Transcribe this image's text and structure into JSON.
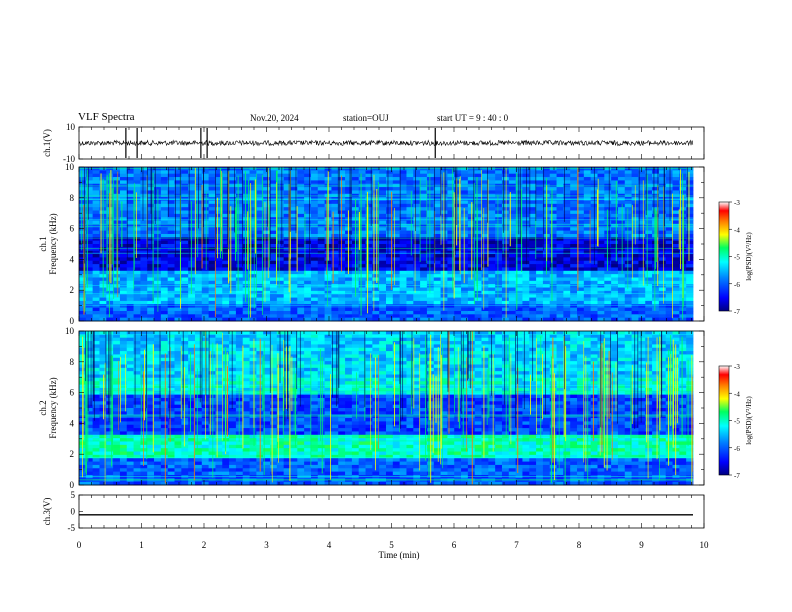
{
  "header": {
    "title": "VLF Spectra",
    "date": "Nov.20, 2024",
    "station": "station=OUJ",
    "start": "start  UT  =   9  : 40 : 0"
  },
  "colors": {
    "spectrogram_scale": [
      "#000080",
      "#0000ff",
      "#0080ff",
      "#00ffff",
      "#00ff80",
      "#ffff00",
      "#ff8000",
      "#ff0000",
      "#ffffff"
    ]
  },
  "chart_data": [
    {
      "type": "line",
      "panel": "waveform-ch1",
      "ylabel": "ch.1(V)",
      "ylim": [
        -10,
        10
      ],
      "yticks": [
        "10",
        "-10"
      ],
      "xlim": [
        0,
        10
      ],
      "baseline_value": 0,
      "description_values": {
        "spike_times_min": [
          0.75,
          0.93,
          1.95,
          2.05,
          5.7
        ]
      }
    },
    {
      "type": "heatmap",
      "panel": "spectrogram-ch1",
      "ylabel": "ch.1\nFrequency  (kHz)",
      "ylim": [
        0,
        10
      ],
      "yticks": [
        "0",
        "2",
        "4",
        "6",
        "8",
        "10"
      ],
      "xlim": [
        0,
        9.83
      ],
      "colorbar": {
        "label": "log(PSD)(V²/Hz)",
        "range": [
          -7,
          -3
        ],
        "ticks": [
          "-3",
          "-4",
          "-5",
          "-6",
          "-7"
        ]
      }
    },
    {
      "type": "heatmap",
      "panel": "spectrogram-ch2",
      "ylabel": "ch.2\nFrequency  (kHz)",
      "ylim": [
        0,
        10
      ],
      "yticks": [
        "0",
        "2",
        "4",
        "6",
        "8",
        "10"
      ],
      "xlim": [
        0,
        9.83
      ],
      "colorbar": {
        "label": "log(PSD)(V²/Hz)",
        "range": [
          -7,
          -3
        ],
        "ticks": [
          "-3",
          "-4",
          "-5",
          "-6",
          "-7"
        ]
      }
    },
    {
      "type": "line",
      "panel": "waveform-ch3",
      "ylabel": "ch.3(V)",
      "ylim": [
        -5,
        5
      ],
      "yticks": [
        "5",
        "0",
        "-5"
      ],
      "xlim": [
        0,
        9.83
      ],
      "baseline_value": -1
    }
  ],
  "xaxis": {
    "label": "Time  (min)",
    "ticks": [
      "0",
      "1",
      "2",
      "3",
      "4",
      "5",
      "6",
      "7",
      "8",
      "9",
      "10"
    ],
    "range": [
      0,
      10
    ]
  }
}
